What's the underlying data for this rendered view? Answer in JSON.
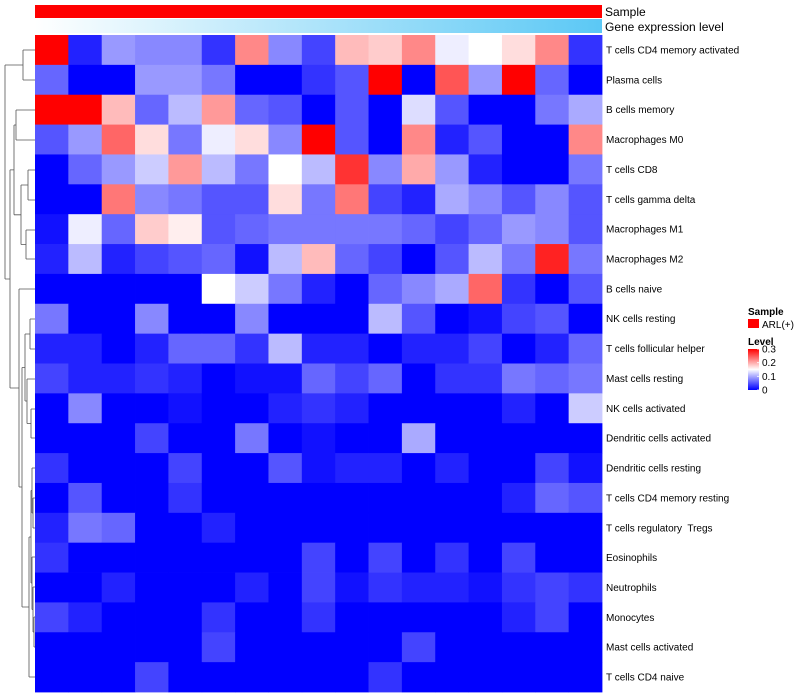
{
  "chart_data": {
    "type": "heatmap",
    "annotation_tracks": [
      {
        "name": "Sample",
        "color": "#ff0000"
      },
      {
        "name": "Gene expression level",
        "gradient": [
          "#ffffff",
          "#5bc8f5"
        ]
      }
    ],
    "rows": [
      "T cells CD4 memory activated",
      "Plasma cells",
      "B cells memory",
      "Macrophages M0",
      "T cells CD8",
      "T cells gamma delta",
      "Macrophages M1",
      "Macrophages M2",
      "B cells naive",
      "NK cells resting",
      "T cells follicular helper",
      "Mast cells resting",
      "NK cells activated",
      "Dendritic cells activated",
      "Dendritic cells resting",
      "T cells CD4 memory resting",
      "T cells regulatory  Tregs",
      "Eosinophils",
      "Neutrophils",
      "Monocytes",
      "Mast cells activated",
      "T cells CD4 naive"
    ],
    "n_columns": 17,
    "values": [
      [
        0.3,
        0.02,
        0.09,
        0.08,
        0.08,
        0.03,
        0.22,
        0.08,
        0.04,
        0.19,
        0.18,
        0.22,
        0.14,
        0.15,
        0.17,
        0.22,
        0.03
      ],
      [
        0.06,
        0.0,
        0.0,
        0.09,
        0.09,
        0.07,
        0.0,
        0.0,
        0.03,
        0.05,
        0.3,
        0.0,
        0.25,
        0.09,
        0.3,
        0.06,
        0.0
      ],
      [
        0.3,
        0.3,
        0.19,
        0.06,
        0.11,
        0.21,
        0.06,
        0.05,
        0.0,
        0.05,
        0.0,
        0.13,
        0.05,
        0.0,
        0.0,
        0.07,
        0.1
      ],
      [
        0.05,
        0.09,
        0.24,
        0.17,
        0.07,
        0.14,
        0.17,
        0.08,
        0.3,
        0.05,
        0.0,
        0.22,
        0.02,
        0.05,
        0.0,
        0.0,
        0.22
      ],
      [
        0.0,
        0.06,
        0.09,
        0.12,
        0.21,
        0.11,
        0.07,
        0.15,
        0.11,
        0.27,
        0.08,
        0.2,
        0.09,
        0.02,
        0.0,
        0.0,
        0.07
      ],
      [
        0.0,
        0.0,
        0.23,
        0.08,
        0.07,
        0.05,
        0.05,
        0.17,
        0.07,
        0.23,
        0.04,
        0.02,
        0.1,
        0.08,
        0.05,
        0.08,
        0.05
      ],
      [
        0.01,
        0.14,
        0.06,
        0.18,
        0.16,
        0.05,
        0.06,
        0.07,
        0.07,
        0.07,
        0.07,
        0.06,
        0.04,
        0.06,
        0.09,
        0.08,
        0.05
      ],
      [
        0.02,
        0.11,
        0.02,
        0.04,
        0.05,
        0.06,
        0.01,
        0.11,
        0.19,
        0.06,
        0.04,
        0.0,
        0.05,
        0.11,
        0.07,
        0.28,
        0.07
      ],
      [
        0.0,
        0.0,
        0.0,
        0.0,
        0.0,
        0.15,
        0.12,
        0.07,
        0.02,
        0.0,
        0.06,
        0.08,
        0.1,
        0.24,
        0.03,
        0.0,
        0.05
      ],
      [
        0.07,
        0.0,
        0.0,
        0.08,
        0.0,
        0.0,
        0.08,
        0.0,
        0.0,
        0.0,
        0.11,
        0.05,
        0.0,
        0.01,
        0.04,
        0.05,
        0.0
      ],
      [
        0.02,
        0.02,
        0.0,
        0.02,
        0.06,
        0.06,
        0.03,
        0.11,
        0.02,
        0.02,
        0.0,
        0.02,
        0.02,
        0.04,
        0.0,
        0.02,
        0.06
      ],
      [
        0.04,
        0.02,
        0.02,
        0.03,
        0.02,
        0.0,
        0.01,
        0.01,
        0.06,
        0.04,
        0.06,
        0.0,
        0.03,
        0.03,
        0.07,
        0.06,
        0.07
      ],
      [
        0.0,
        0.08,
        0.0,
        0.0,
        0.01,
        0.0,
        0.0,
        0.02,
        0.03,
        0.02,
        0.0,
        0.0,
        0.0,
        0.0,
        0.02,
        0.0,
        0.12
      ],
      [
        0.0,
        0.0,
        0.0,
        0.04,
        0.0,
        0.0,
        0.07,
        0.0,
        0.01,
        0.0,
        0.0,
        0.1,
        0.0,
        0.0,
        0.0,
        0.0,
        0.0
      ],
      [
        0.03,
        0.0,
        0.0,
        0.0,
        0.04,
        0.0,
        0.0,
        0.05,
        0.01,
        0.02,
        0.02,
        0.0,
        0.02,
        0.0,
        0.0,
        0.04,
        0.01
      ],
      [
        0.0,
        0.05,
        0.0,
        0.0,
        0.03,
        0.0,
        0.0,
        0.0,
        0.0,
        0.0,
        0.0,
        0.0,
        0.0,
        0.0,
        0.02,
        0.06,
        0.05
      ],
      [
        0.02,
        0.07,
        0.06,
        0.0,
        0.0,
        0.02,
        0.0,
        0.0,
        0.0,
        0.0,
        0.0,
        0.0,
        0.0,
        0.0,
        0.0,
        0.0,
        0.0
      ],
      [
        0.03,
        0.0,
        0.0,
        0.0,
        0.0,
        0.0,
        0.0,
        0.0,
        0.04,
        0.0,
        0.04,
        0.0,
        0.03,
        0.0,
        0.04,
        0.0,
        0.0
      ],
      [
        0.0,
        0.0,
        0.02,
        0.0,
        0.0,
        0.0,
        0.02,
        0.0,
        0.04,
        0.01,
        0.03,
        0.02,
        0.02,
        0.01,
        0.03,
        0.04,
        0.03
      ],
      [
        0.04,
        0.02,
        0.0,
        0.0,
        0.0,
        0.03,
        0.0,
        0.0,
        0.03,
        0.0,
        0.0,
        0.0,
        0.0,
        0.0,
        0.02,
        0.04,
        0.0
      ],
      [
        0.0,
        0.0,
        0.0,
        0.0,
        0.0,
        0.04,
        0.0,
        0.0,
        0.0,
        0.0,
        0.0,
        0.04,
        0.0,
        0.0,
        0.0,
        0.0,
        0.0
      ],
      [
        0.0,
        0.0,
        0.0,
        0.04,
        0.0,
        0.0,
        0.0,
        0.0,
        0.0,
        0.0,
        0.03,
        0.0,
        0.0,
        0.0,
        0.0,
        0.0,
        0.0
      ]
    ],
    "color_scale": {
      "min": 0,
      "max": 0.3,
      "colors": [
        "#0000ff",
        "#ffffff",
        "#ff0000"
      ],
      "ticks": [
        "0.3",
        "0.2",
        "0.1",
        "0"
      ]
    },
    "legend": {
      "sample_title": "Sample",
      "sample_item": "ARL(+)",
      "sample_color": "#ff0000",
      "level_title": "Level"
    },
    "dendrogram": "left"
  }
}
